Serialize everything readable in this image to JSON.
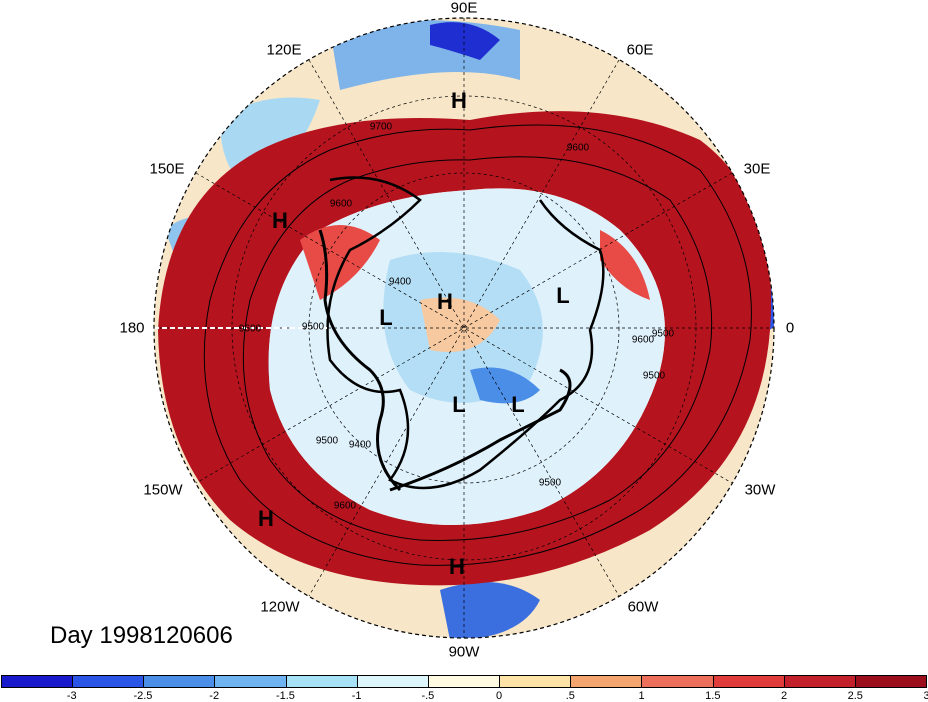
{
  "date_label": "Day 1998120606",
  "longitude_labels": [
    {
      "name": "90e",
      "text": "90E"
    },
    {
      "name": "60e",
      "text": "60E"
    },
    {
      "name": "120e",
      "text": "120E"
    },
    {
      "name": "150e",
      "text": "150E"
    },
    {
      "name": "30e",
      "text": "30E"
    },
    {
      "name": "180",
      "text": "180"
    },
    {
      "name": "0",
      "text": "0"
    },
    {
      "name": "150w",
      "text": "150W"
    },
    {
      "name": "30w",
      "text": "30W"
    },
    {
      "name": "120w",
      "text": "120W"
    },
    {
      "name": "60w",
      "text": "60W"
    },
    {
      "name": "90w",
      "text": "90W"
    }
  ],
  "pressure_markers": [
    {
      "type": "H"
    },
    {
      "type": "H"
    },
    {
      "type": "H"
    },
    {
      "type": "L"
    },
    {
      "type": "L"
    },
    {
      "type": "L"
    },
    {
      "type": "L"
    },
    {
      "type": "H"
    },
    {
      "type": "H"
    }
  ],
  "contour_labels": [
    "9700",
    "9600",
    "9600",
    "9500",
    "9600",
    "9400",
    "9500",
    "9600",
    "9500",
    "9400",
    "9500",
    "9600",
    "9500"
  ],
  "colorbar": {
    "colors": [
      "#1a1acd",
      "#2a55e6",
      "#4a8ee8",
      "#6fb4f0",
      "#a6e1f6",
      "#dcf6fb",
      "#fffae0",
      "#fde3a8",
      "#f4a46e",
      "#eb6f5a",
      "#e03c3c",
      "#c2202b",
      "#9b0e1c"
    ],
    "ticks": [
      "-3",
      "-2.5",
      "-2",
      "-1.5",
      "-1",
      "-.5",
      "0",
      ".5",
      "1",
      "1.5",
      "2",
      "2.5",
      "3"
    ]
  }
}
